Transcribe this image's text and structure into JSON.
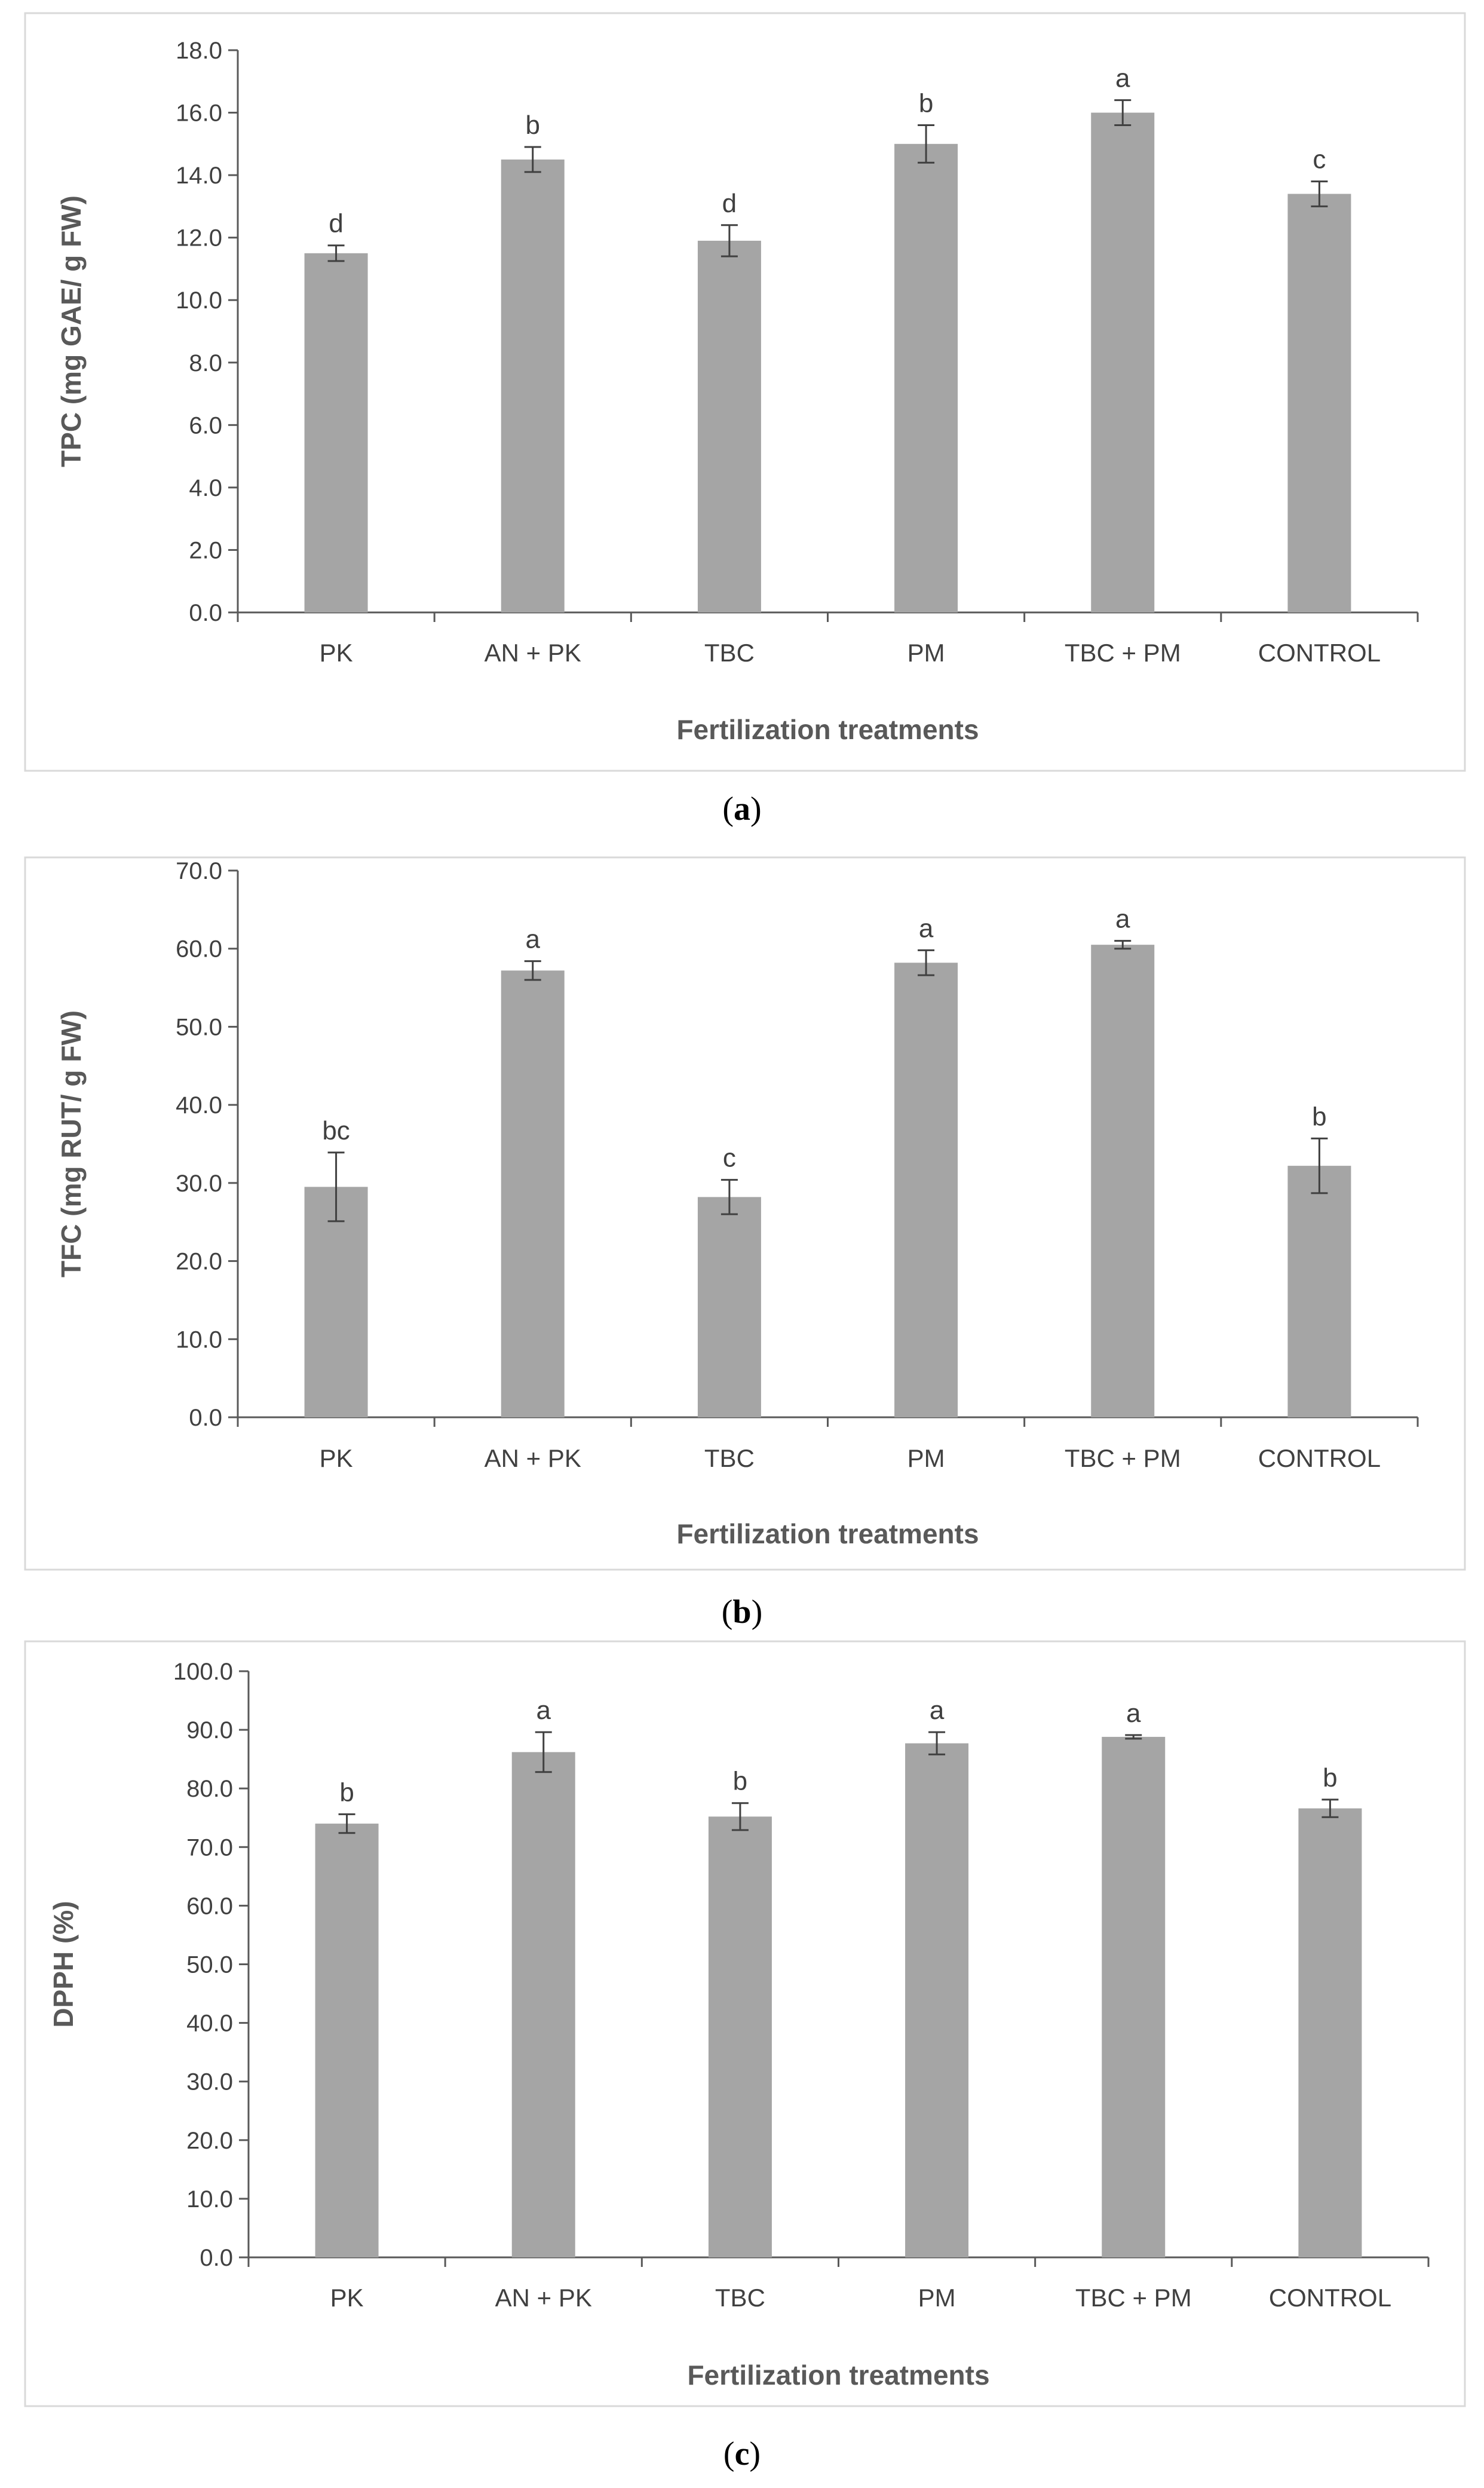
{
  "chart_data": [
    {
      "type": "bar",
      "caption_letter": "a",
      "categories": [
        "PK",
        "AN + PK",
        "TBC",
        "PM",
        "TBC + PM",
        "CONTROL"
      ],
      "values": [
        11.5,
        14.5,
        11.9,
        15.0,
        16.0,
        13.4
      ],
      "errors": [
        0.25,
        0.4,
        0.5,
        0.6,
        0.4,
        0.4
      ],
      "letters": [
        "d",
        "b",
        "d",
        "b",
        "a",
        "c"
      ],
      "ylabel": "TPC (mg GAE/ g FW)",
      "xlabel": "Fertilization treatments",
      "ylim": [
        0,
        18
      ],
      "ystep": 2,
      "tick_labels": [
        "0.0",
        "2.0",
        "4.0",
        "6.0",
        "8.0",
        "10.0",
        "12.0",
        "14.0",
        "16.0",
        "18.0"
      ],
      "grid": false
    },
    {
      "type": "bar",
      "caption_letter": "b",
      "categories": [
        "PK",
        "AN + PK",
        "TBC",
        "PM",
        "TBC + PM",
        "CONTROL"
      ],
      "values": [
        29.5,
        57.2,
        28.2,
        58.2,
        60.5,
        32.2
      ],
      "errors": [
        4.4,
        1.2,
        2.2,
        1.6,
        0.5,
        3.5
      ],
      "letters": [
        "bc",
        "a",
        "c",
        "a",
        "a",
        "b"
      ],
      "ylabel": "TFC (mg RUT/ g FW)",
      "xlabel": "Fertilization treatments",
      "ylim": [
        0,
        70
      ],
      "ystep": 10,
      "tick_labels": [
        "0.0",
        "10.0",
        "20.0",
        "30.0",
        "40.0",
        "50.0",
        "60.0",
        "70.0"
      ],
      "grid": false
    },
    {
      "type": "bar",
      "caption_letter": "c",
      "categories": [
        "PK",
        "AN + PK",
        "TBC",
        "PM",
        "TBC + PM",
        "CONTROL"
      ],
      "values": [
        74.0,
        86.2,
        75.2,
        87.7,
        88.8,
        76.6
      ],
      "errors": [
        1.6,
        3.4,
        2.3,
        1.9,
        0.3,
        1.5
      ],
      "letters": [
        "b",
        "a",
        "b",
        "a",
        "a",
        "b"
      ],
      "ylabel": "DPPH (%)",
      "xlabel": "Fertilization treatments",
      "ylim": [
        0,
        100
      ],
      "ystep": 10,
      "tick_labels": [
        "0.0",
        "10.0",
        "20.0",
        "30.0",
        "40.0",
        "50.0",
        "60.0",
        "70.0",
        "80.0",
        "90.0",
        "100.0"
      ],
      "grid": false
    }
  ]
}
